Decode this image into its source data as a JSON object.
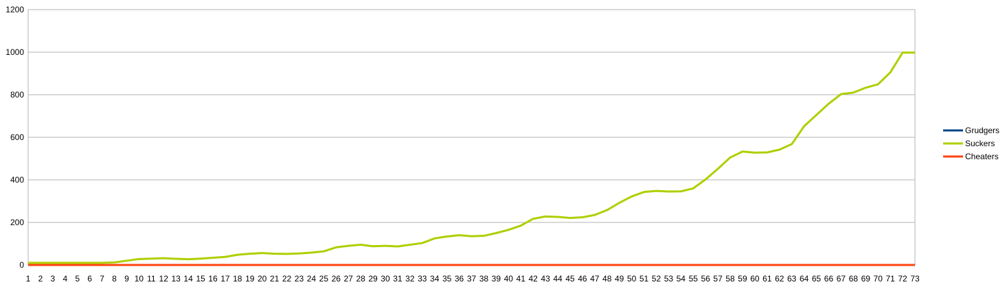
{
  "chart_data": {
    "type": "line",
    "title": "",
    "xlabel": "",
    "ylabel": "",
    "ylim": [
      0,
      1200
    ],
    "y_ticks": [
      0,
      200,
      400,
      600,
      800,
      1000,
      1200
    ],
    "x": [
      "1",
      "2",
      "3",
      "4",
      "5",
      "6",
      "7",
      "8",
      "9",
      "10",
      "11",
      "12",
      "13",
      "14",
      "15",
      "16",
      "17",
      "18",
      "19",
      "20",
      "21",
      "22",
      "23",
      "24",
      "25",
      "26",
      "27",
      "28",
      "29",
      "30",
      "31",
      "32",
      "33",
      "34",
      "35",
      "36",
      "37",
      "38",
      "39",
      "40",
      "41",
      "42",
      "43",
      "44",
      "45",
      "46",
      "47",
      "48",
      "49",
      "50",
      "51",
      "52",
      "53",
      "54",
      "55",
      "56",
      "57",
      "58",
      "59",
      "60",
      "61",
      "62",
      "63",
      "64",
      "65",
      "66",
      "67",
      "68",
      "69",
      "70",
      "71",
      "72",
      "73"
    ],
    "grid": true,
    "legend_position": "right",
    "series": [
      {
        "name": "Grudgers",
        "color": "#004586",
        "values": [
          0,
          0,
          0,
          0,
          0,
          0,
          0,
          0,
          0,
          0,
          0,
          0,
          0,
          0,
          0,
          0,
          0,
          0,
          0,
          0,
          0,
          0,
          0,
          0,
          0,
          0,
          0,
          0,
          0,
          0,
          0,
          0,
          0,
          0,
          0,
          0,
          0,
          0,
          0,
          0,
          0,
          0,
          0,
          0,
          0,
          0,
          0,
          0,
          0,
          0,
          0,
          0,
          0,
          0,
          0,
          0,
          0,
          0,
          0,
          0,
          0,
          0,
          0,
          0,
          0,
          0,
          0,
          0,
          0,
          0,
          0,
          0,
          0
        ]
      },
      {
        "name": "Suckers",
        "color": "#aecf00",
        "values": [
          10,
          10,
          10,
          10,
          10,
          10,
          10,
          12,
          20,
          28,
          30,
          32,
          29,
          27,
          30,
          34,
          38,
          48,
          53,
          56,
          53,
          52,
          54,
          58,
          64,
          83,
          90,
          95,
          88,
          90,
          87,
          95,
          103,
          125,
          134,
          140,
          135,
          137,
          150,
          165,
          185,
          217,
          228,
          226,
          221,
          224,
          235,
          258,
          292,
          322,
          343,
          348,
          345,
          346,
          360,
          402,
          452,
          505,
          533,
          528,
          529,
          542,
          568,
          652,
          705,
          758,
          803,
          810,
          833,
          849,
          905,
          998,
          998
        ]
      },
      {
        "name": "Cheaters",
        "color": "#ff420e",
        "values": [
          0,
          0,
          0,
          0,
          0,
          0,
          0,
          0,
          0,
          0,
          0,
          0,
          0,
          0,
          0,
          0,
          0,
          0,
          0,
          0,
          0,
          0,
          0,
          0,
          0,
          0,
          0,
          0,
          0,
          0,
          0,
          0,
          0,
          0,
          0,
          0,
          0,
          0,
          0,
          0,
          0,
          0,
          0,
          0,
          0,
          0,
          0,
          0,
          0,
          0,
          0,
          0,
          0,
          0,
          0,
          0,
          0,
          0,
          0,
          0,
          0,
          0,
          0,
          0,
          0,
          0,
          0,
          0,
          0,
          0,
          0,
          0,
          0
        ]
      }
    ]
  }
}
